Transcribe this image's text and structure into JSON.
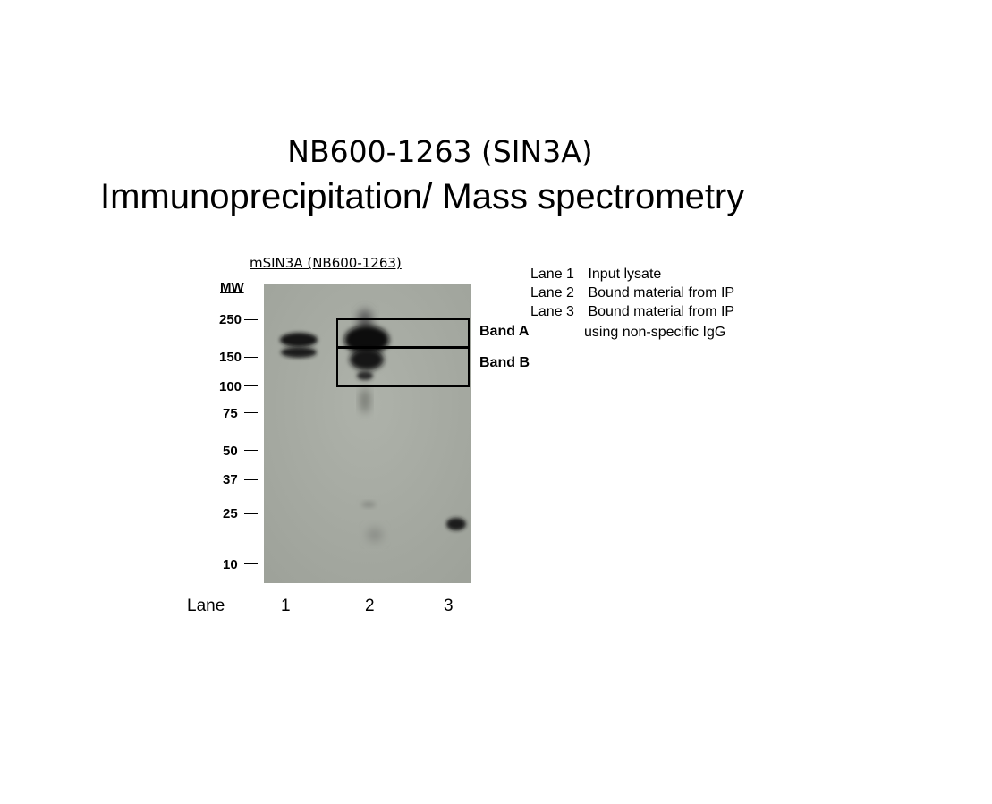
{
  "title": {
    "line1": "NB600-1263 (SIN3A)",
    "line2": "Immunoprecipitation/ Mass spectrometry"
  },
  "blot": {
    "antibody_label": "mSIN3A (NB600-1263)",
    "mw_header": "MW",
    "markers": [
      "250",
      "150",
      "100",
      "75",
      "50",
      "37",
      "25",
      "10"
    ],
    "band_a_label": "Band A",
    "band_b_label": "Band B",
    "lane_label": "Lane",
    "lanes": [
      "1",
      "2",
      "3"
    ]
  },
  "legend": {
    "items": [
      {
        "key": "Lane 1",
        "text": "Input lysate"
      },
      {
        "key": "Lane 2",
        "text": "Bound material from IP"
      },
      {
        "key": "Lane 3",
        "text": "Bound material from IP"
      }
    ],
    "continuation": "using non-specific IgG"
  },
  "colors": {
    "gel_background": "#a5a9a1",
    "band": "#141414"
  }
}
